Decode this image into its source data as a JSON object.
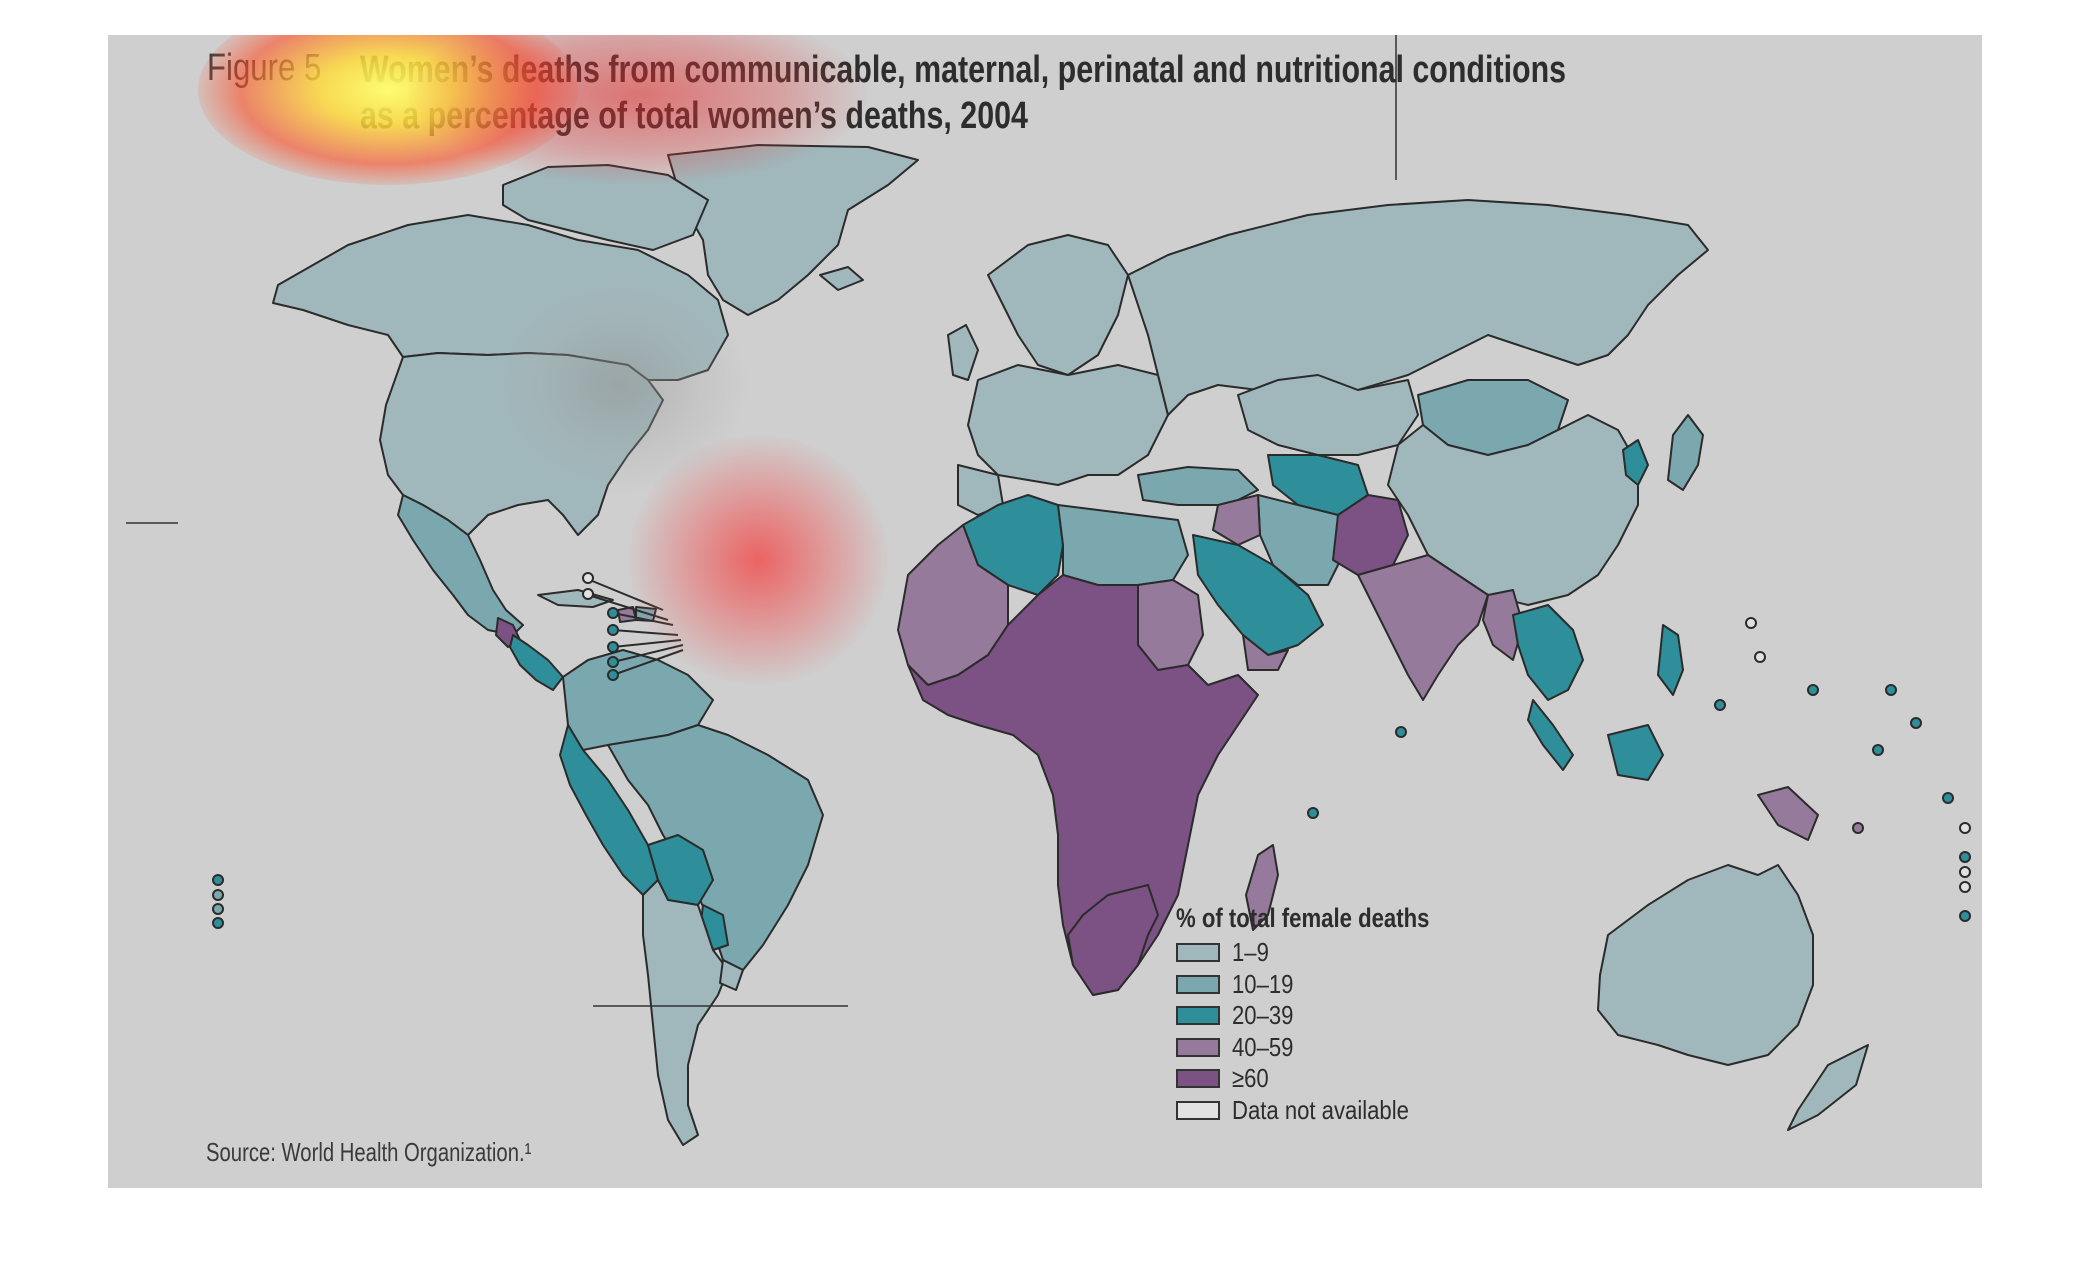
{
  "figure": {
    "label": "Figure 5",
    "title_line1": "Women’s deaths from communicable, maternal, perinatal and nutritional conditions",
    "title_line2": "as a percentage of total women’s deaths, 2004"
  },
  "legend": {
    "title": "% of total female deaths",
    "items": [
      {
        "label": "1–9",
        "color": "#a0b8bc"
      },
      {
        "label": "10–19",
        "color": "#7ba7ae"
      },
      {
        "label": "20–39",
        "color": "#2e8e99"
      },
      {
        "label": "40–59",
        "color": "#957a9c"
      },
      {
        "label": "≥60",
        "color": "#7b5283"
      },
      {
        "label": "Data not available",
        "color": "#e2e2e2"
      }
    ]
  },
  "source": "Source: World Health Organization.¹",
  "colors": {
    "panel_background": "#cfcfcf",
    "border": "#2b2b2b",
    "heatmap_hot": "#ffff66",
    "heatmap_warm": "#ff3333"
  }
}
